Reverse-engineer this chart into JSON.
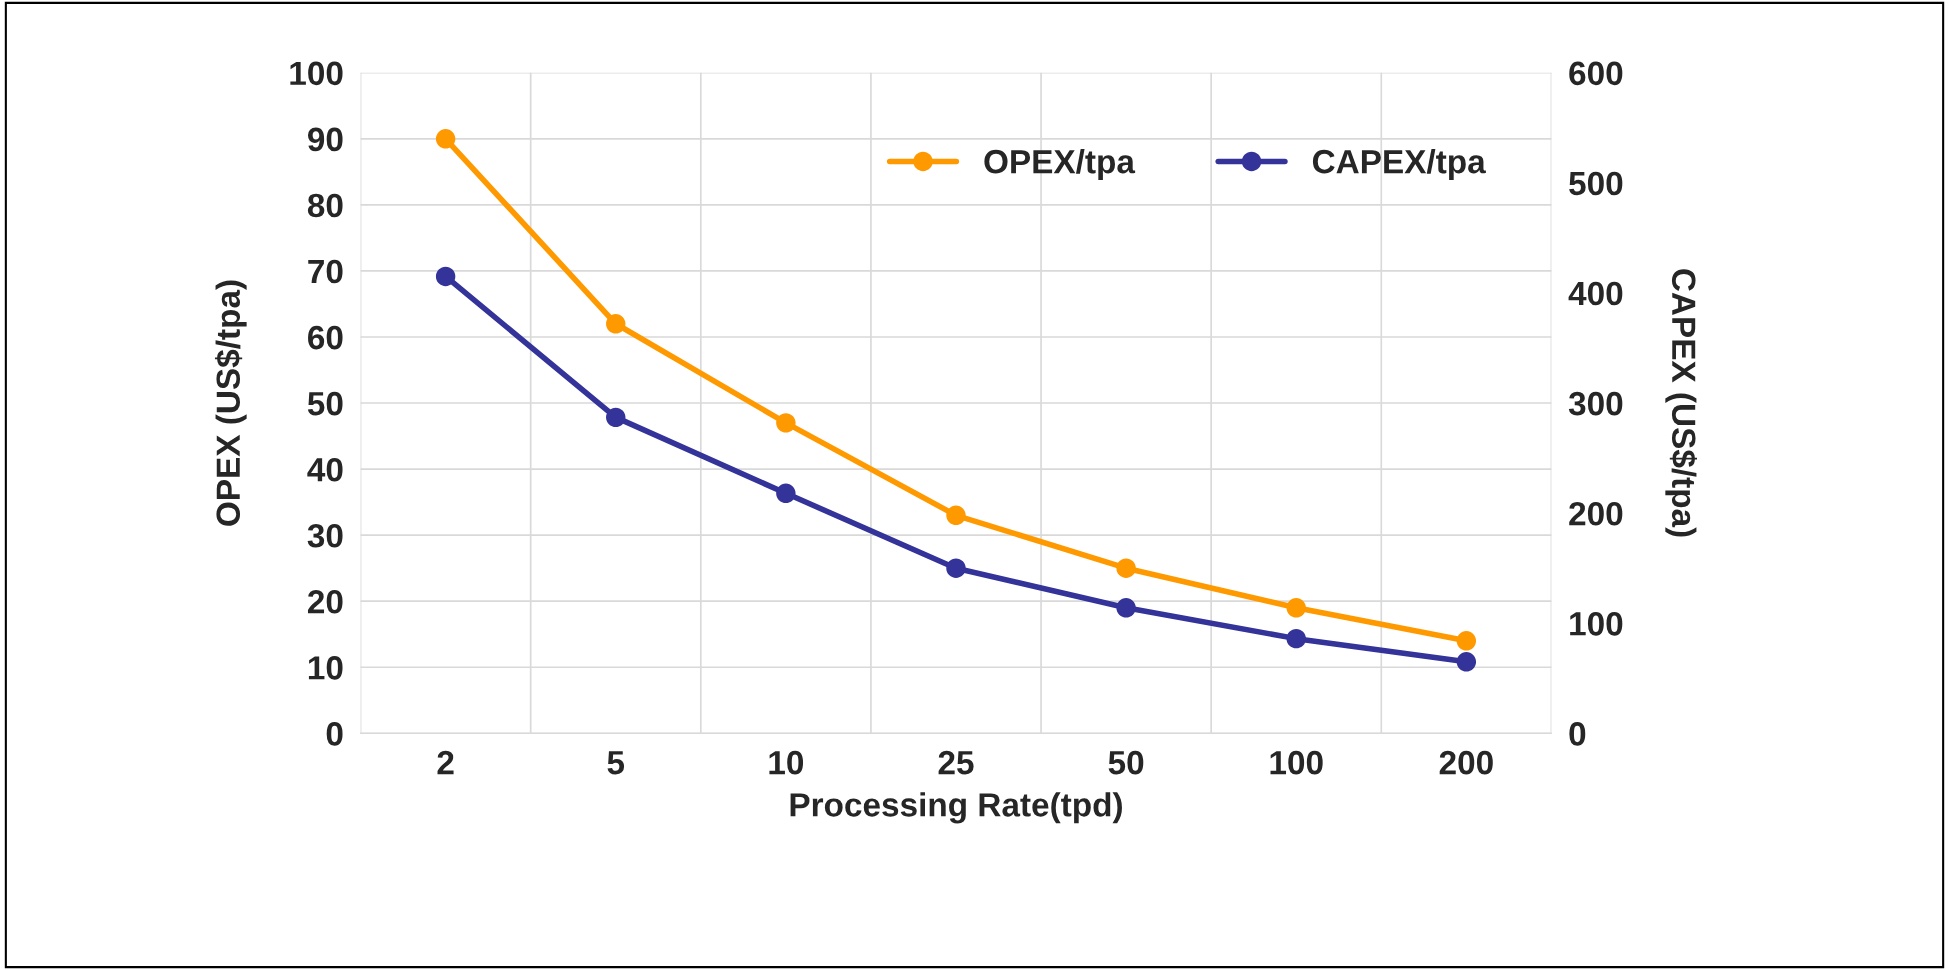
{
  "chart_data": {
    "type": "line",
    "xlabel": "Processing Rate(tpd)",
    "ylabel": "OPEX (US$/tpa)",
    "y2label": "CAPEX (US$/tpa)",
    "categories": [
      "2",
      "5",
      "10",
      "25",
      "50",
      "100",
      "200"
    ],
    "series": [
      {
        "name": "OPEX/tpa",
        "color": "#ff9900",
        "values": [
          90,
          62,
          47,
          33,
          25,
          19,
          14
        ]
      },
      {
        "name": "CAPEX/tpa",
        "color": "#333399",
        "axis": "y2",
        "values": [
          415,
          287,
          218,
          150,
          114,
          86,
          65
        ]
      }
    ],
    "ylim": [
      0,
      100
    ],
    "yticks": [
      0,
      10,
      20,
      30,
      40,
      50,
      60,
      70,
      80,
      90,
      100
    ],
    "y2lim": [
      0,
      600
    ],
    "y2ticks": [
      0,
      100,
      200,
      300,
      400,
      500,
      600
    ],
    "grid": true,
    "legend": "top right",
    "marker": "circle",
    "line_style": "solid"
  }
}
